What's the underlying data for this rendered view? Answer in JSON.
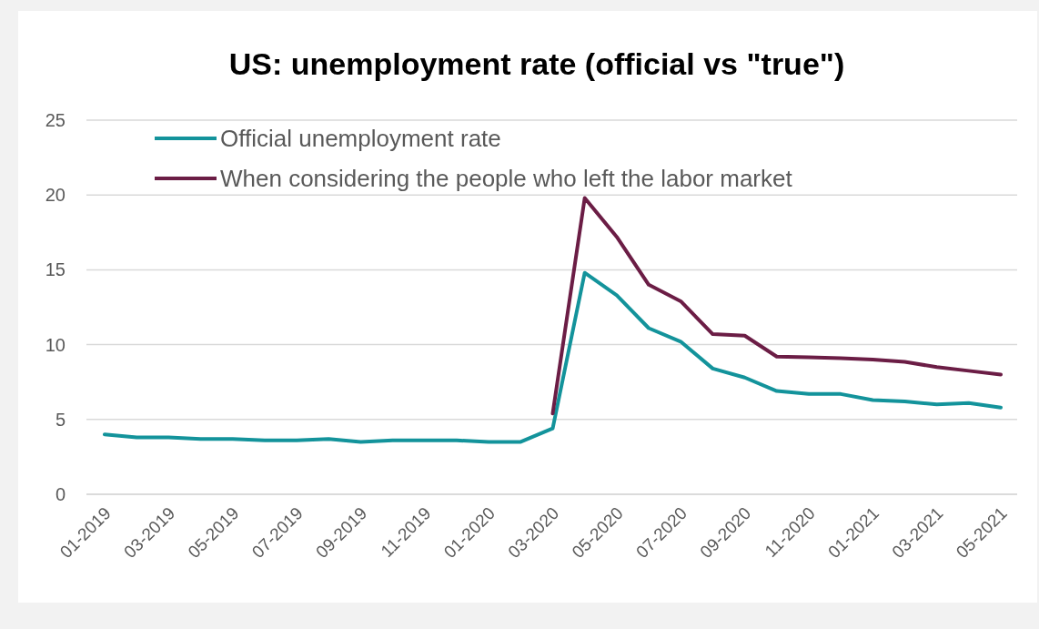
{
  "chart_data": {
    "type": "line",
    "title": "US: unemployment rate (official vs \"true\")",
    "categories": [
      "01-2019",
      null,
      "03-2019",
      null,
      "05-2019",
      null,
      "07-2019",
      null,
      "09-2019",
      null,
      "11-2019",
      null,
      "01-2020",
      null,
      "03-2020",
      null,
      "05-2020",
      null,
      "07-2020",
      null,
      "09-2020",
      null,
      "11-2020",
      null,
      "01-2021",
      null,
      "03-2021",
      null,
      "05-2021"
    ],
    "series": [
      {
        "name": "Official unemployment rate",
        "color": "#13939b",
        "values": [
          4.0,
          3.8,
          3.8,
          3.7,
          3.7,
          3.6,
          3.6,
          3.7,
          3.5,
          3.6,
          3.6,
          3.6,
          3.5,
          3.5,
          4.4,
          14.8,
          13.3,
          11.1,
          10.2,
          8.4,
          7.8,
          6.9,
          6.7,
          6.7,
          6.3,
          6.2,
          6.0,
          6.1,
          5.8
        ]
      },
      {
        "name": "When considering the people who left the labor market",
        "color": "#6b1d45",
        "values": [
          null,
          null,
          null,
          null,
          null,
          null,
          null,
          null,
          null,
          null,
          null,
          null,
          null,
          null,
          5.4,
          19.8,
          17.2,
          14.0,
          12.9,
          10.7,
          10.6,
          9.2,
          9.15,
          9.1,
          9.0,
          8.85,
          8.5,
          8.25,
          8.0
        ]
      }
    ],
    "ylim": [
      0,
      25
    ],
    "yticks": [
      0,
      5,
      10,
      15,
      20,
      25
    ],
    "grid": "y",
    "legend": "top left"
  }
}
